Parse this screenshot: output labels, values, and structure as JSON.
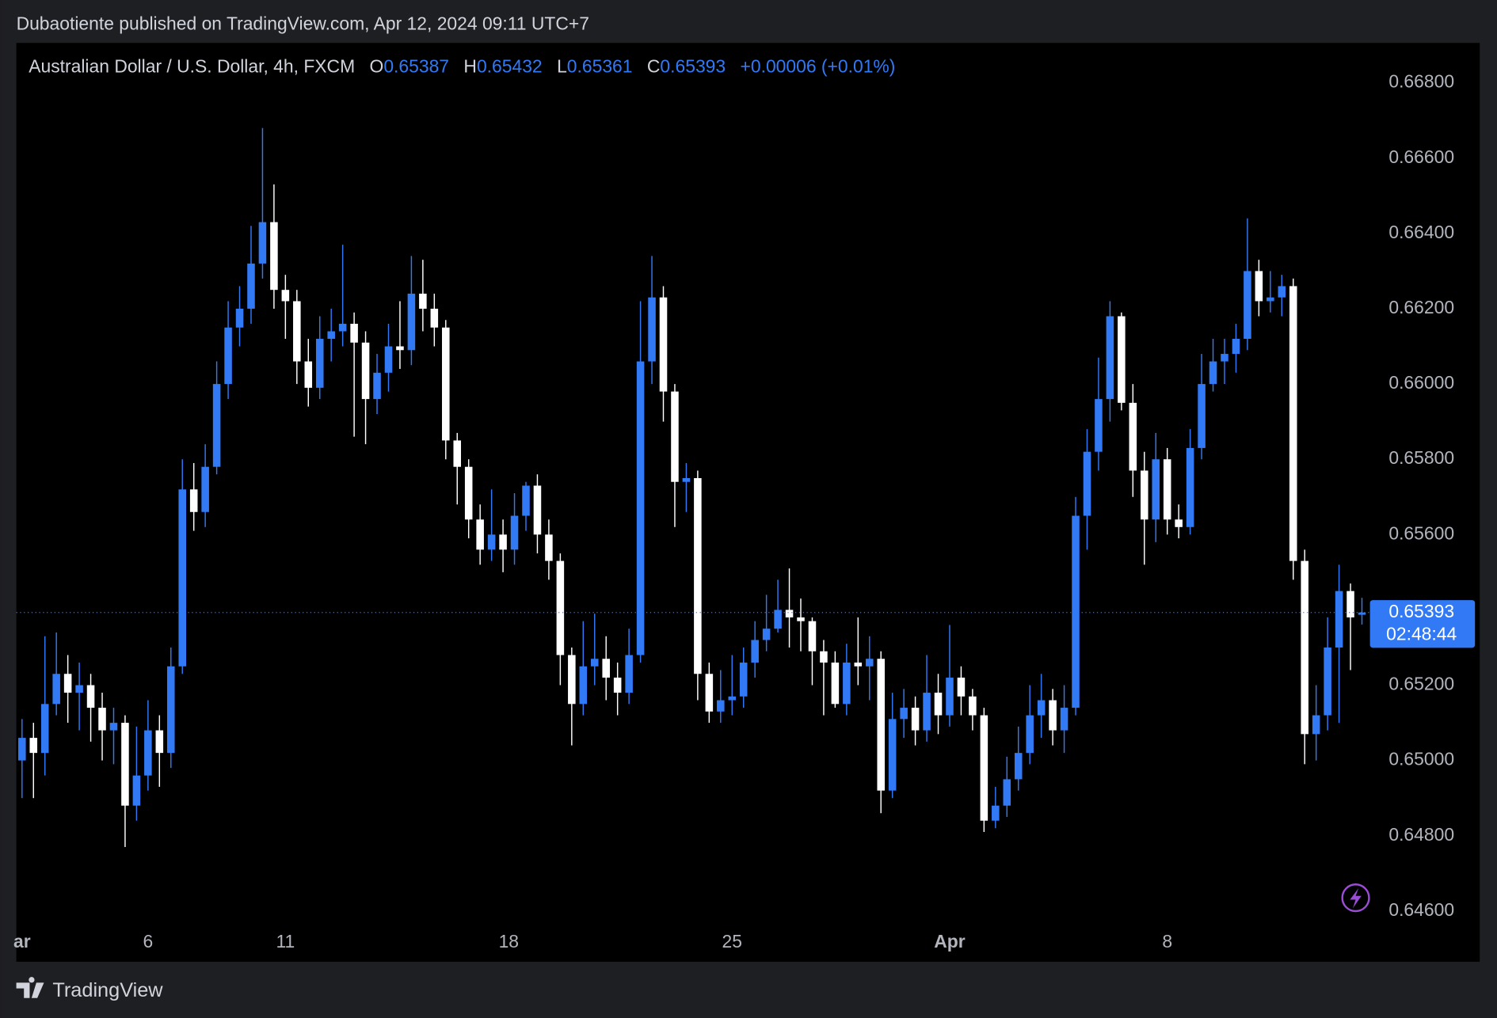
{
  "header": "Dubaotiente published on TradingView.com, Apr 12, 2024 09:11 UTC+7",
  "footer": "TradingView",
  "chart_data": {
    "type": "candlestick",
    "title": "Australian Dollar / U.S. Dollar, 4h, FXCM",
    "ohlc_labels": [
      "O",
      "H",
      "L",
      "C"
    ],
    "change": "+0.00006 (+0.01%)",
    "countdown": "02:48:44",
    "up_color": "#3179f5",
    "down_color": "#ffffff",
    "xlim": [
      -0.5,
      117.7
    ],
    "xticks": [
      {
        "value": 0,
        "label": "ar"
      },
      {
        "value": 11,
        "label": "6"
      },
      {
        "value": 23,
        "label": "11"
      },
      {
        "value": 42.5,
        "label": "18"
      },
      {
        "value": 62,
        "label": "25"
      },
      {
        "value": 81,
        "label": "Apr"
      },
      {
        "value": 100,
        "label": "8"
      }
    ],
    "ylim": [
      0.64549,
      0.66906
    ],
    "yticks": [
      {
        "value": 0.646,
        "label": "0.64600"
      },
      {
        "value": 0.648,
        "label": "0.64800"
      },
      {
        "value": 0.65,
        "label": "0.65000"
      },
      {
        "value": 0.652,
        "label": "0.65200"
      },
      {
        "value": 0.654,
        "label": "0.65400"
      },
      {
        "value": 0.656,
        "label": "0.65600"
      },
      {
        "value": 0.658,
        "label": "0.65800"
      },
      {
        "value": 0.66,
        "label": "0.66000"
      },
      {
        "value": 0.662,
        "label": "0.66200"
      },
      {
        "value": 0.664,
        "label": "0.66400"
      },
      {
        "value": 0.666,
        "label": "0.66600"
      },
      {
        "value": 0.668,
        "label": "0.66800"
      }
    ],
    "grid": false,
    "open": [
      0.65,
      0.6506,
      0.6502,
      0.6515,
      0.6523,
      0.6518,
      0.652,
      0.6514,
      0.6508,
      0.651,
      0.6488,
      0.6496,
      0.6508,
      0.6502,
      0.6525,
      0.6572,
      0.6566,
      0.6578,
      0.66,
      0.6615,
      0.662,
      0.6632,
      0.6643,
      0.6625,
      0.6622,
      0.6606,
      0.6599,
      0.6612,
      0.6614,
      0.6616,
      0.6611,
      0.6596,
      0.6603,
      0.661,
      0.6609,
      0.6624,
      0.662,
      0.6615,
      0.6585,
      0.6578,
      0.6564,
      0.6556,
      0.656,
      0.6556,
      0.6565,
      0.6573,
      0.656,
      0.6553,
      0.6528,
      0.6515,
      0.6525,
      0.6527,
      0.6522,
      0.6518,
      0.6528,
      0.6606,
      0.6623,
      0.6598,
      0.6574,
      0.6575,
      0.6523,
      0.6513,
      0.6516,
      0.6517,
      0.6526,
      0.6532,
      0.6535,
      0.654,
      0.6538,
      0.6537,
      0.6529,
      0.6526,
      0.6515,
      0.6526,
      0.6525,
      0.6527,
      0.6492,
      0.6511,
      0.6514,
      0.6508,
      0.6518,
      0.6512,
      0.6522,
      0.6517,
      0.6512,
      0.6484,
      0.6488,
      0.6495,
      0.6502,
      0.6512,
      0.6516,
      0.6508,
      0.6514,
      0.6565,
      0.6582,
      0.6596,
      0.6618,
      0.6595,
      0.6577,
      0.6564,
      0.658,
      0.6564,
      0.6562,
      0.6583,
      0.66,
      0.6606,
      0.6608,
      0.6612,
      0.663,
      0.6622,
      0.6623,
      0.6626,
      0.6553,
      0.6507,
      0.6512,
      0.653,
      0.6545,
      0.65387
    ],
    "high": [
      0.6511,
      0.651,
      0.6533,
      0.6534,
      0.6528,
      0.6526,
      0.6523,
      0.6518,
      0.6514,
      0.6512,
      0.6509,
      0.6516,
      0.6512,
      0.653,
      0.658,
      0.6579,
      0.6584,
      0.6606,
      0.6622,
      0.6626,
      0.6642,
      0.6668,
      0.6653,
      0.6629,
      0.6625,
      0.6612,
      0.6618,
      0.662,
      0.6637,
      0.6619,
      0.6614,
      0.6608,
      0.6616,
      0.6622,
      0.6634,
      0.6633,
      0.6624,
      0.6617,
      0.6587,
      0.658,
      0.6568,
      0.6572,
      0.6564,
      0.6571,
      0.6574,
      0.6576,
      0.6564,
      0.6555,
      0.653,
      0.6537,
      0.6539,
      0.6533,
      0.6526,
      0.6535,
      0.6622,
      0.6634,
      0.6626,
      0.66,
      0.6579,
      0.6577,
      0.6526,
      0.6524,
      0.6528,
      0.653,
      0.6537,
      0.6544,
      0.6548,
      0.6551,
      0.6543,
      0.6538,
      0.6532,
      0.6529,
      0.6531,
      0.6538,
      0.6533,
      0.6529,
      0.6518,
      0.6519,
      0.6517,
      0.6528,
      0.6523,
      0.6536,
      0.6525,
      0.6519,
      0.6514,
      0.6493,
      0.6501,
      0.6509,
      0.652,
      0.6523,
      0.6519,
      0.652,
      0.657,
      0.6588,
      0.6607,
      0.6622,
      0.6619,
      0.66,
      0.6582,
      0.6587,
      0.6583,
      0.6568,
      0.6588,
      0.6608,
      0.6612,
      0.6612,
      0.6616,
      0.6644,
      0.6633,
      0.663,
      0.6629,
      0.6628,
      0.6556,
      0.652,
      0.6538,
      0.6552,
      0.6547,
      0.65432
    ],
    "low": [
      0.649,
      0.649,
      0.6496,
      0.6512,
      0.651,
      0.6508,
      0.6505,
      0.65,
      0.6499,
      0.6477,
      0.6484,
      0.6492,
      0.6493,
      0.6498,
      0.6523,
      0.6561,
      0.6562,
      0.6576,
      0.6596,
      0.661,
      0.6616,
      0.6628,
      0.662,
      0.6612,
      0.66,
      0.6594,
      0.6596,
      0.6606,
      0.661,
      0.6586,
      0.6584,
      0.6592,
      0.6598,
      0.6604,
      0.6605,
      0.6614,
      0.661,
      0.658,
      0.6568,
      0.6559,
      0.6552,
      0.6553,
      0.655,
      0.6552,
      0.6561,
      0.6555,
      0.6548,
      0.652,
      0.6504,
      0.6512,
      0.652,
      0.6516,
      0.6512,
      0.6515,
      0.6526,
      0.66,
      0.659,
      0.6562,
      0.6566,
      0.6516,
      0.651,
      0.651,
      0.6512,
      0.6514,
      0.6522,
      0.6529,
      0.6534,
      0.653,
      0.6529,
      0.652,
      0.6512,
      0.6514,
      0.6512,
      0.652,
      0.6516,
      0.6486,
      0.649,
      0.6506,
      0.6504,
      0.6505,
      0.6507,
      0.6509,
      0.6512,
      0.6508,
      0.6481,
      0.6482,
      0.6485,
      0.6492,
      0.6499,
      0.6506,
      0.6504,
      0.6502,
      0.6512,
      0.6556,
      0.6577,
      0.659,
      0.6593,
      0.657,
      0.6552,
      0.6558,
      0.656,
      0.6559,
      0.656,
      0.658,
      0.6598,
      0.66,
      0.6603,
      0.6609,
      0.6618,
      0.6619,
      0.6618,
      0.6548,
      0.6499,
      0.65,
      0.6508,
      0.651,
      0.6524,
      0.65361
    ],
    "close": [
      0.6506,
      0.6502,
      0.6515,
      0.6523,
      0.6518,
      0.652,
      0.6514,
      0.6508,
      0.651,
      0.6488,
      0.6496,
      0.6508,
      0.6502,
      0.6525,
      0.6572,
      0.6566,
      0.6578,
      0.66,
      0.6615,
      0.662,
      0.6632,
      0.6643,
      0.6625,
      0.6622,
      0.6606,
      0.6599,
      0.6612,
      0.6614,
      0.6616,
      0.6611,
      0.6596,
      0.6603,
      0.661,
      0.6609,
      0.6624,
      0.662,
      0.6615,
      0.6585,
      0.6578,
      0.6564,
      0.6556,
      0.656,
      0.6556,
      0.6565,
      0.6573,
      0.656,
      0.6553,
      0.6528,
      0.6515,
      0.6525,
      0.6527,
      0.6522,
      0.6518,
      0.6528,
      0.6606,
      0.6623,
      0.6598,
      0.6574,
      0.6575,
      0.6523,
      0.6513,
      0.6516,
      0.6517,
      0.6526,
      0.6532,
      0.6535,
      0.654,
      0.6538,
      0.6537,
      0.6529,
      0.6526,
      0.6515,
      0.6526,
      0.6525,
      0.6527,
      0.6492,
      0.6511,
      0.6514,
      0.6508,
      0.6518,
      0.6512,
      0.6522,
      0.6517,
      0.6512,
      0.6484,
      0.6488,
      0.6495,
      0.6502,
      0.6512,
      0.6516,
      0.6508,
      0.6514,
      0.6565,
      0.6582,
      0.6596,
      0.6618,
      0.6595,
      0.6577,
      0.6564,
      0.658,
      0.6564,
      0.6562,
      0.6583,
      0.66,
      0.6606,
      0.6608,
      0.6612,
      0.663,
      0.6622,
      0.6623,
      0.6626,
      0.6553,
      0.6507,
      0.6512,
      0.653,
      0.6545,
      0.6538,
      0.65393
    ]
  }
}
